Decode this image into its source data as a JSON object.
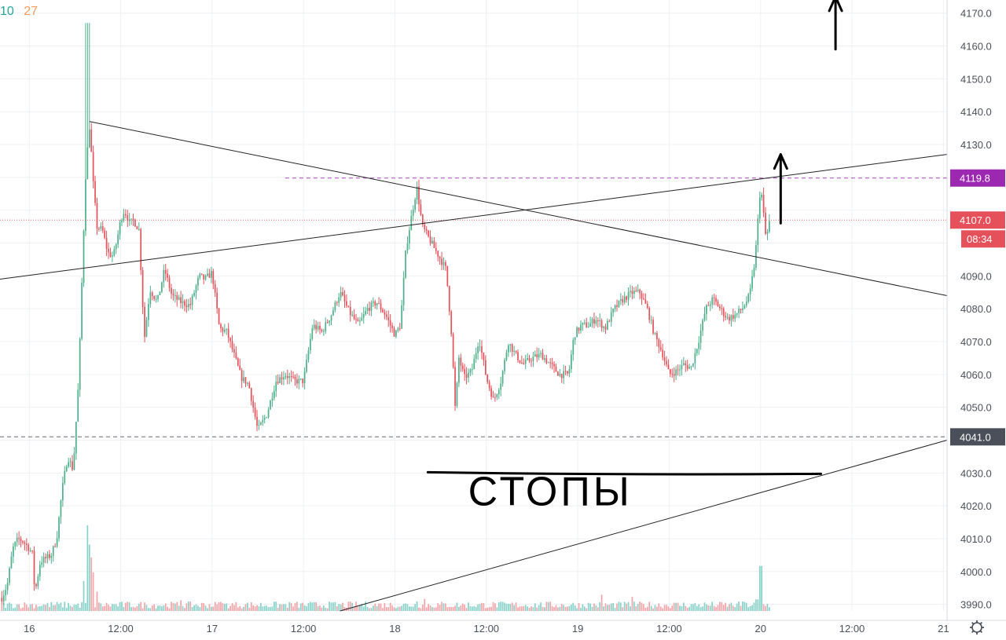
{
  "hud": {
    "left_value": "10",
    "right_value": "27"
  },
  "colors": {
    "up": "#4caf8a",
    "down": "#e5505a",
    "vol_up": "#88d1c8",
    "vol_down": "#f2a4a8",
    "grid": "#eef0f3",
    "axis_text": "#4a4f58",
    "drawing": "#222222",
    "ink": "#000000",
    "tag_purple": "#9c27b0",
    "tag_red": "#e5505a",
    "tag_dark": "#4a4f5a",
    "hud_green": "#26a69a",
    "hud_orange": "#f59c5c"
  },
  "annotation_text": "СТОПЫ",
  "settings_icon": "gear-icon",
  "chart_data": {
    "type": "candlestick",
    "title": "",
    "xlabel": "",
    "ylabel": "",
    "ylim": [
      3988,
      4174
    ],
    "y_ticks": [
      3990,
      4000,
      4010,
      4020,
      4030,
      4040,
      4050,
      4060,
      4070,
      4080,
      4090,
      4100,
      4110,
      4120,
      4130,
      4140,
      4150,
      4160,
      4170
    ],
    "y_tick_labels": [
      "3990.0",
      "4000.0",
      "4010.0",
      "4020.0",
      "4030.0",
      "",
      "4050.0",
      "4060.0",
      "4070.0",
      "4080.0",
      "4090.0",
      "",
      "",
      "",
      "4130.0",
      "4140.0",
      "4150.0",
      "4160.0",
      "4170.0"
    ],
    "x_ticks": [
      {
        "label": "16",
        "x": 0.0
      },
      {
        "label": "12:00",
        "x": 0.5
      },
      {
        "label": "17",
        "x": 1.0
      },
      {
        "label": "12:00",
        "x": 1.5
      },
      {
        "label": "18",
        "x": 2.0
      },
      {
        "label": "12:00",
        "x": 2.5
      },
      {
        "label": "19",
        "x": 3.0
      },
      {
        "label": "12:00",
        "x": 3.5
      },
      {
        "label": "20",
        "x": 4.0
      },
      {
        "label": "12:00",
        "x": 4.5
      },
      {
        "label": "21",
        "x": 5.0
      }
    ],
    "x_range": [
      -0.16,
      5.02
    ],
    "close_path": [
      [
        -0.15,
        3992
      ],
      [
        -0.12,
        3996
      ],
      [
        -0.09,
        4007
      ],
      [
        -0.06,
        4010
      ],
      [
        -0.03,
        4009
      ],
      [
        0.0,
        4007
      ],
      [
        0.02,
        4005
      ],
      [
        0.03,
        3993
      ],
      [
        0.06,
        4003
      ],
      [
        0.09,
        4004
      ],
      [
        0.12,
        4005
      ],
      [
        0.15,
        4010
      ],
      [
        0.18,
        4025
      ],
      [
        0.21,
        4035
      ],
      [
        0.24,
        4031
      ],
      [
        0.27,
        4058
      ],
      [
        0.29,
        4092
      ],
      [
        0.31,
        4123
      ],
      [
        0.33,
        4136
      ],
      [
        0.35,
        4118
      ],
      [
        0.37,
        4105
      ],
      [
        0.4,
        4104
      ],
      [
        0.43,
        4097
      ],
      [
        0.46,
        4096
      ],
      [
        0.48,
        4101
      ],
      [
        0.5,
        4107
      ],
      [
        0.52,
        4110
      ],
      [
        0.55,
        4106
      ],
      [
        0.57,
        4107
      ],
      [
        0.6,
        4104
      ],
      [
        0.63,
        4071
      ],
      [
        0.66,
        4086
      ],
      [
        0.7,
        4082
      ],
      [
        0.74,
        4092
      ],
      [
        0.78,
        4084
      ],
      [
        0.83,
        4082
      ],
      [
        0.88,
        4081
      ],
      [
        0.93,
        4090
      ],
      [
        0.96,
        4089
      ],
      [
        1.0,
        4091
      ],
      [
        1.04,
        4074
      ],
      [
        1.08,
        4073
      ],
      [
        1.12,
        4066
      ],
      [
        1.16,
        4059
      ],
      [
        1.2,
        4057
      ],
      [
        1.25,
        4043
      ],
      [
        1.3,
        4048
      ],
      [
        1.35,
        4058
      ],
      [
        1.4,
        4060
      ],
      [
        1.45,
        4058
      ],
      [
        1.5,
        4058
      ],
      [
        1.55,
        4075
      ],
      [
        1.6,
        4073
      ],
      [
        1.65,
        4078
      ],
      [
        1.7,
        4085
      ],
      [
        1.75,
        4079
      ],
      [
        1.8,
        4075
      ],
      [
        1.85,
        4080
      ],
      [
        1.9,
        4082
      ],
      [
        1.95,
        4078
      ],
      [
        2.0,
        4072
      ],
      [
        2.03,
        4075
      ],
      [
        2.06,
        4098
      ],
      [
        2.09,
        4108
      ],
      [
        2.12,
        4117
      ],
      [
        2.15,
        4105
      ],
      [
        2.19,
        4101
      ],
      [
        2.22,
        4098
      ],
      [
        2.25,
        4095
      ],
      [
        2.28,
        4092
      ],
      [
        2.31,
        4072
      ],
      [
        2.33,
        4049
      ],
      [
        2.35,
        4065
      ],
      [
        2.38,
        4059
      ],
      [
        2.42,
        4061
      ],
      [
        2.46,
        4071
      ],
      [
        2.5,
        4059
      ],
      [
        2.54,
        4052
      ],
      [
        2.58,
        4058
      ],
      [
        2.62,
        4070
      ],
      [
        2.66,
        4066
      ],
      [
        2.7,
        4063
      ],
      [
        2.75,
        4065
      ],
      [
        2.8,
        4066
      ],
      [
        2.85,
        4063
      ],
      [
        2.9,
        4060
      ],
      [
        2.95,
        4060
      ],
      [
        2.98,
        4072
      ],
      [
        3.02,
        4075
      ],
      [
        3.06,
        4075
      ],
      [
        3.1,
        4077
      ],
      [
        3.15,
        4074
      ],
      [
        3.2,
        4080
      ],
      [
        3.25,
        4083
      ],
      [
        3.3,
        4085
      ],
      [
        3.34,
        4085
      ],
      [
        3.38,
        4080
      ],
      [
        3.42,
        4072
      ],
      [
        3.46,
        4067
      ],
      [
        3.5,
        4060
      ],
      [
        3.54,
        4061
      ],
      [
        3.58,
        4063
      ],
      [
        3.62,
        4062
      ],
      [
        3.66,
        4070
      ],
      [
        3.7,
        4080
      ],
      [
        3.74,
        4083
      ],
      [
        3.78,
        4080
      ],
      [
        3.82,
        4077
      ],
      [
        3.86,
        4078
      ],
      [
        3.9,
        4080
      ],
      [
        3.94,
        4084
      ],
      [
        3.97,
        4095
      ],
      [
        4.0,
        4118
      ],
      [
        4.03,
        4101
      ],
      [
        4.05,
        4107
      ]
    ],
    "volume_max": 2200,
    "volume_spikes": [
      {
        "x": 0.32,
        "v": 2000
      },
      {
        "x": 0.33,
        "v": 1550
      },
      {
        "x": 0.34,
        "v": 1250
      },
      {
        "x": 0.35,
        "v": 900
      },
      {
        "x": 0.3,
        "v": 700
      },
      {
        "x": 0.37,
        "v": 450
      },
      {
        "x": 2.16,
        "v": 280
      },
      {
        "x": 2.12,
        "v": 220
      },
      {
        "x": 3.13,
        "v": 380
      },
      {
        "x": 3.3,
        "v": 330
      },
      {
        "x": 3.98,
        "v": 270
      },
      {
        "x": 4.0,
        "v": 1050
      },
      {
        "x": 3.9,
        "v": 220
      },
      {
        "x": 0.83,
        "v": 250
      },
      {
        "x": 1.05,
        "v": 210
      }
    ],
    "drawings": [
      {
        "name": "falling-trendline",
        "x1": 0.33,
        "y1": 4137,
        "x2": 5.02,
        "y2": 4084
      },
      {
        "name": "rising-trendline",
        "x1": -0.16,
        "y1": 4089,
        "x2": 5.02,
        "y2": 4127
      },
      {
        "name": "support-trendline",
        "x1": 1.7,
        "y1": 3988,
        "x2": 5.02,
        "y2": 4040
      }
    ],
    "price_lines": [
      {
        "name": "resistance-line",
        "value": 4119.8,
        "label": "4119.8",
        "color_key": "tag_purple",
        "from_x": 1.4
      },
      {
        "name": "current-price-line",
        "value": 4107.0,
        "label": "4107.0",
        "color_key": "tag_red",
        "from_x": -0.16,
        "countdown": "08:34"
      },
      {
        "name": "stop-level-line",
        "value": 4041.0,
        "label": "4041.0",
        "color_key": "tag_dark",
        "from_x": -0.16
      }
    ],
    "arrows": [
      {
        "name": "breakout-arrow",
        "x": 4.11,
        "y_from": 4106,
        "y_to": 4127
      },
      {
        "name": "target-arrow",
        "x": 4.41,
        "y_from": 4159,
        "y_to": 4175
      }
    ],
    "stop_underline": {
      "x1": 2.18,
      "x2": 4.33,
      "y": 4030
    },
    "stop_label_pos": {
      "x": 2.85,
      "y": 4023
    }
  }
}
